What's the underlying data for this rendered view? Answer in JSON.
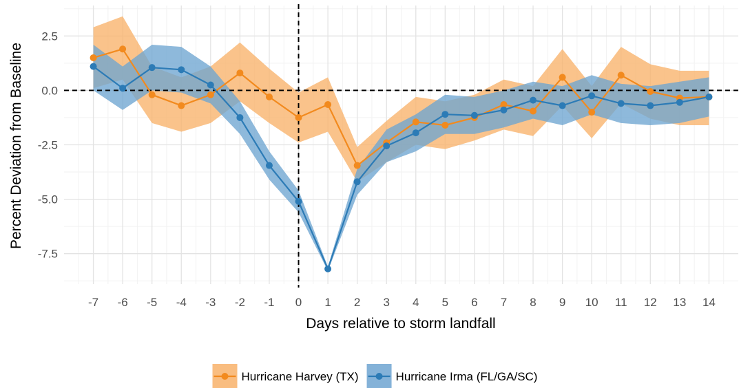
{
  "chart_data": {
    "type": "line",
    "title": "",
    "xlabel": "Days relative to storm landfall",
    "ylabel": "Percent Deviation from Baseline",
    "x": [
      -7,
      -6,
      -5,
      -4,
      -3,
      -2,
      -1,
      0,
      1,
      2,
      3,
      4,
      5,
      6,
      7,
      8,
      9,
      10,
      11,
      12,
      13,
      14
    ],
    "x_ticks": [
      "-7",
      "-6",
      "-5",
      "-4",
      "-3",
      "-2",
      "-1",
      "0",
      "1",
      "2",
      "3",
      "4",
      "5",
      "6",
      "7",
      "8",
      "9",
      "10",
      "11",
      "12",
      "13",
      "14"
    ],
    "y_ticks": [
      "2.5",
      "0.0",
      "-2.5",
      "-5.0",
      "-7.5"
    ],
    "y_tick_values": [
      2.5,
      0.0,
      -2.5,
      -5.0,
      -7.5
    ],
    "xlim": [
      -8,
      15
    ],
    "ylim": [
      -8.9,
      3.9
    ],
    "grid": true,
    "legend_position": "bottom",
    "reference_lines": {
      "vertical_x": 0,
      "horizontal_y": 0,
      "style": "dashed"
    },
    "series": [
      {
        "name": "Hurricane Harvey (TX)",
        "color": "#F28A1E",
        "band_color": "#F8B26A",
        "values": [
          1.5,
          1.9,
          -0.2,
          -0.7,
          -0.2,
          0.8,
          -0.3,
          -1.25,
          -0.65,
          -3.45,
          -2.4,
          -1.45,
          -1.6,
          -1.25,
          -0.65,
          -0.95,
          0.6,
          -1.0,
          0.7,
          -0.05,
          -0.35,
          -0.3
        ],
        "lower": [
          0.1,
          0.5,
          -1.5,
          -1.9,
          -1.5,
          -0.5,
          -1.5,
          -2.4,
          -1.9,
          -4.2,
          -3.3,
          -2.5,
          -2.7,
          -2.3,
          -1.8,
          -2.1,
          -0.7,
          -2.2,
          -0.6,
          -1.3,
          -1.6,
          -1.6
        ],
        "upper": [
          2.9,
          3.4,
          1.1,
          0.6,
          1.1,
          2.2,
          1.0,
          -0.1,
          0.6,
          -2.6,
          -1.4,
          -0.3,
          -0.5,
          -0.2,
          0.5,
          0.2,
          1.9,
          0.2,
          2.0,
          1.2,
          0.9,
          0.9
        ]
      },
      {
        "name": "Hurricane Irma (FL/GA/SC)",
        "color": "#2C7BB6",
        "band_color": "#6EA5D1",
        "values": [
          1.1,
          0.1,
          1.05,
          0.95,
          0.25,
          -1.25,
          -3.45,
          -5.1,
          -8.2,
          -4.2,
          -2.55,
          -1.95,
          -1.1,
          -1.15,
          -0.9,
          -0.45,
          -0.7,
          -0.25,
          -0.6,
          -0.7,
          -0.55,
          -0.3
        ],
        "lower": [
          0.0,
          -0.9,
          0.0,
          -0.1,
          -0.6,
          -2.0,
          -4.1,
          -5.6,
          -8.3,
          -4.8,
          -3.3,
          -2.8,
          -2.0,
          -2.0,
          -1.7,
          -1.3,
          -1.6,
          -1.1,
          -1.5,
          -1.6,
          -1.5,
          -1.2
        ],
        "upper": [
          2.1,
          1.1,
          2.1,
          2.0,
          1.1,
          -0.5,
          -2.8,
          -4.6,
          -8.1,
          -3.6,
          -1.8,
          -1.1,
          -0.2,
          -0.3,
          0.0,
          0.4,
          0.2,
          0.7,
          0.3,
          0.2,
          0.4,
          0.6
        ]
      }
    ]
  }
}
